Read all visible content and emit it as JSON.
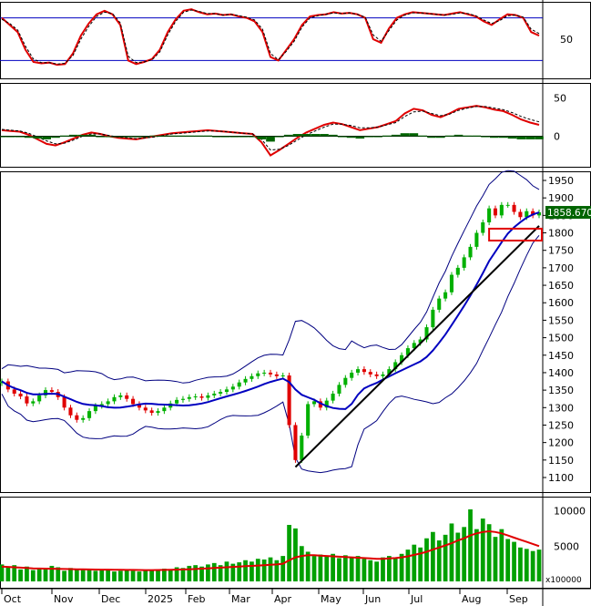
{
  "chart_data": {
    "type": "candlestick",
    "title": "",
    "months": [
      "Oct",
      "Nov",
      "Dec",
      "2025",
      "Feb",
      "Mar",
      "Apr",
      "May",
      "Jun",
      "Jul",
      "Aug",
      "Sep"
    ],
    "panels": [
      {
        "name": "stochastic",
        "type": "line",
        "ylim": [
          0,
          100
        ],
        "ticks": [
          "50"
        ],
        "levels": [
          80,
          20
        ],
        "series": [
          {
            "name": "",
            "color": "#e00000",
            "values": [
              80,
              70,
              60,
              35,
              18,
              16,
              17,
              14,
              15,
              30,
              55,
              72,
              85,
              90,
              85,
              70,
              20,
              15,
              18,
              22,
              35,
              60,
              78,
              90,
              92,
              88,
              85,
              86,
              84,
              85,
              82,
              80,
              75,
              60,
              25,
              20,
              35,
              50,
              70,
              82,
              84,
              85,
              88,
              86,
              87,
              85,
              80,
              50,
              45,
              65,
              80,
              85,
              88,
              87,
              86,
              85,
              84,
              86,
              88,
              85,
              82,
              75,
              70,
              78,
              85,
              84,
              80,
              60,
              55
            ]
          },
          {
            "name": "",
            "color": "#000000",
            "values": [
              78,
              72,
              63,
              40,
              22,
              17,
              17,
              15,
              16,
              27,
              50,
              68,
              82,
              88,
              86,
              73,
              26,
              17,
              18,
              21,
              32,
              56,
              75,
              88,
              91,
              89,
              86,
              86,
              84,
              85,
              83,
              81,
              77,
              64,
              30,
              21,
              33,
              47,
              67,
              80,
              83,
              85,
              87,
              86,
              87,
              85,
              81,
              56,
              47,
              62,
              77,
              84,
              87,
              87,
              86,
              85,
              84,
              85,
              87,
              86,
              83,
              77,
              72,
              76,
              83,
              84,
              81,
              64,
              58
            ]
          }
        ]
      },
      {
        "name": "macd",
        "type": "line",
        "ylim": [
          -40,
          70
        ],
        "ticks": [
          "50",
          "0"
        ],
        "series": [
          {
            "name": "",
            "color": "#e00000",
            "values": [
              8,
              7,
              6,
              2,
              -4,
              -10,
              -12,
              -8,
              -3,
              2,
              5,
              3,
              0,
              -2,
              -3,
              -4,
              -2,
              0,
              2,
              4,
              5,
              6,
              7,
              8,
              7,
              6,
              5,
              4,
              3,
              -8,
              -25,
              -18,
              -10,
              -2,
              5,
              10,
              15,
              18,
              16,
              12,
              8,
              10,
              12,
              16,
              20,
              30,
              36,
              34,
              28,
              25,
              30,
              36,
              38,
              40,
              38,
              35,
              33,
              28,
              22,
              18,
              15
            ]
          },
          {
            "name": "",
            "color": "#000000",
            "values": [
              9,
              8,
              7,
              4,
              -1,
              -6,
              -10,
              -9,
              -5,
              0,
              3,
              3,
              1,
              -1,
              -2,
              -3,
              -2,
              -1,
              1,
              3,
              4,
              5,
              6,
              7,
              7,
              6,
              5,
              4,
              3,
              -4,
              -18,
              -17,
              -12,
              -5,
              2,
              7,
              12,
              16,
              16,
              14,
              11,
              11,
              12,
              15,
              18,
              26,
              32,
              33,
              30,
              27,
              29,
              34,
              37,
              39,
              39,
              37,
              35,
              31,
              26,
              22,
              19
            ]
          },
          {
            "name": "",
            "color": "#006400",
            "type": "bar",
            "values": [
              -1,
              -1,
              -1,
              -2,
              -3,
              -4,
              -2,
              1,
              2,
              2,
              2,
              0,
              -1,
              -1,
              -1,
              -1,
              0,
              1,
              1,
              1,
              1,
              1,
              1,
              1,
              0,
              0,
              0,
              0,
              0,
              -4,
              -7,
              -1,
              2,
              3,
              3,
              3,
              3,
              2,
              0,
              -2,
              -3,
              -1,
              0,
              1,
              2,
              4,
              4,
              1,
              -2,
              -2,
              1,
              2,
              1,
              1,
              -1,
              -2,
              -2,
              -3,
              -4,
              -4,
              -4
            ]
          }
        ]
      },
      {
        "name": "price",
        "type": "candlestick",
        "ylim": [
          1100,
          1950
        ],
        "ticks": [
          "1950",
          "1900",
          "1850",
          "1800",
          "1750",
          "1700",
          "1650",
          "1600",
          "1550",
          "1500",
          "1450",
          "1400",
          "1350",
          "1300",
          "1250",
          "1200",
          "1150",
          "1100"
        ],
        "last_price": "1858.670",
        "colors": {
          "up": "#00b000",
          "down": "#e00000",
          "ma": "#0000c0",
          "band": "#000080",
          "trend": "#000000",
          "box": "#e00000"
        },
        "closes": [
          1375,
          1352,
          1340,
          1332,
          1312,
          1318,
          1335,
          1350,
          1345,
          1330,
          1300,
          1278,
          1265,
          1270,
          1290,
          1305,
          1310,
          1318,
          1330,
          1335,
          1325,
          1310,
          1300,
          1292,
          1285,
          1290,
          1300,
          1312,
          1322,
          1325,
          1330,
          1332,
          1328,
          1335,
          1340,
          1345,
          1352,
          1360,
          1372,
          1382,
          1390,
          1398,
          1400,
          1395,
          1390,
          1392,
          1250,
          1150,
          1220,
          1310,
          1318,
          1300,
          1320,
          1340,
          1365,
          1385,
          1400,
          1410,
          1402,
          1395,
          1390,
          1395,
          1410,
          1430,
          1450,
          1470,
          1485,
          1495,
          1530,
          1580,
          1612,
          1630,
          1680,
          1700,
          1730,
          1760,
          1800,
          1830,
          1870,
          1850,
          1880,
          1880,
          1860,
          1845,
          1862,
          1850,
          1858.67
        ],
        "trendline": [
          [
            47,
            1130
          ],
          [
            86,
            1820
          ]
        ],
        "box": [
          1778,
          1812
        ]
      },
      {
        "name": "volume",
        "type": "bar",
        "ylim": [
          0,
          12000
        ],
        "ticks": [
          "10000",
          "5000"
        ],
        "unit_label": "x100000",
        "values": [
          2400,
          2000,
          2300,
          1700,
          2100,
          1600,
          1900,
          1800,
          2200,
          2000,
          1500,
          1900,
          1700,
          1600,
          1800,
          1500,
          1700,
          1600,
          1400,
          1500,
          1600,
          1500,
          1400,
          1600,
          1500,
          1700,
          1800,
          1700,
          2000,
          1900,
          2200,
          2300,
          2100,
          2400,
          2600,
          2300,
          2800,
          2500,
          2700,
          3000,
          2800,
          3200,
          3100,
          3400,
          3000,
          3600,
          8000,
          7500,
          5000,
          4200,
          3600,
          3800,
          3500,
          3900,
          3300,
          3700,
          3400,
          3600,
          3200,
          3000,
          2800,
          3400,
          3600,
          3300,
          3900,
          4500,
          5200,
          4800,
          6100,
          7000,
          5800,
          6600,
          8200,
          6900,
          7700,
          10200,
          7400,
          8900,
          8100,
          6300,
          7400,
          6000,
          5600,
          4800,
          4600,
          4300,
          4500
        ],
        "ma_values": [
          2100,
          2050,
          2000,
          1950,
          1900,
          1850,
          1820,
          1800,
          1790,
          1780,
          1760,
          1740,
          1720,
          1700,
          1690,
          1680,
          1670,
          1660,
          1650,
          1640,
          1630,
          1620,
          1610,
          1600,
          1600,
          1610,
          1620,
          1640,
          1660,
          1690,
          1720,
          1760,
          1800,
          1850,
          1900,
          1950,
          2000,
          2050,
          2100,
          2150,
          2200,
          2250,
          2300,
          2350,
          2400,
          2500,
          3000,
          3400,
          3600,
          3700,
          3700,
          3650,
          3600,
          3550,
          3500,
          3450,
          3400,
          3350,
          3300,
          3250,
          3200,
          3200,
          3250,
          3300,
          3400,
          3550,
          3750,
          3950,
          4200,
          4500,
          4800,
          5100,
          5400,
          5800,
          6100,
          6500,
          6800,
          7000,
          7100,
          7000,
          6800,
          6500,
          6200,
          5900,
          5600,
          5300,
          5000
        ]
      }
    ]
  }
}
